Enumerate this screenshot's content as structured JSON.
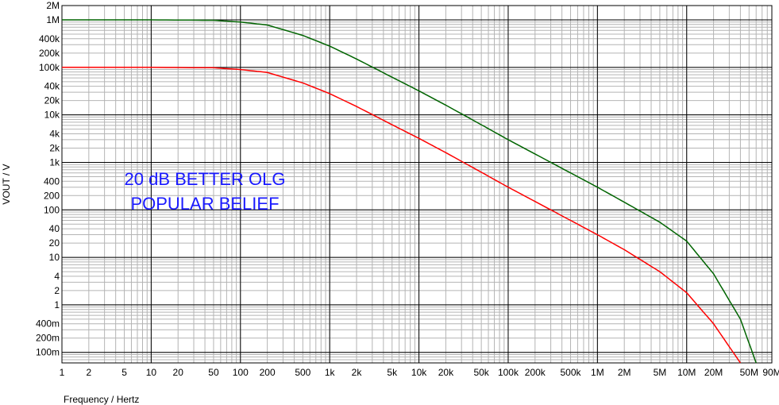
{
  "chart_data": {
    "type": "line",
    "xlabel": "Frequency / Hertz",
    "ylabel": "VOUT / V",
    "x_scale": "log",
    "y_scale": "log",
    "xlim": [
      1,
      90000000
    ],
    "ylim": [
      0.06,
      2000000
    ],
    "grid": true,
    "x_ticks": [
      {
        "value": 1,
        "label": "1"
      },
      {
        "value": 2,
        "label": "2"
      },
      {
        "value": 5,
        "label": "5"
      },
      {
        "value": 10,
        "label": "10"
      },
      {
        "value": 20,
        "label": "20"
      },
      {
        "value": 50,
        "label": "50"
      },
      {
        "value": 100,
        "label": "100"
      },
      {
        "value": 200,
        "label": "200"
      },
      {
        "value": 500,
        "label": "500"
      },
      {
        "value": 1000,
        "label": "1k"
      },
      {
        "value": 2000,
        "label": "2k"
      },
      {
        "value": 5000,
        "label": "5k"
      },
      {
        "value": 10000,
        "label": "10k"
      },
      {
        "value": 20000,
        "label": "20k"
      },
      {
        "value": 50000,
        "label": "50k"
      },
      {
        "value": 100000,
        "label": "100k"
      },
      {
        "value": 200000,
        "label": "200k"
      },
      {
        "value": 500000,
        "label": "500k"
      },
      {
        "value": 1000000,
        "label": "1M"
      },
      {
        "value": 2000000,
        "label": "2M"
      },
      {
        "value": 5000000,
        "label": "5M"
      },
      {
        "value": 10000000,
        "label": "10M"
      },
      {
        "value": 20000000,
        "label": "20M"
      },
      {
        "value": 50000000,
        "label": "50M"
      },
      {
        "value": 90000000,
        "label": "90M"
      }
    ],
    "y_ticks": [
      {
        "value": 2000000,
        "label": "2M"
      },
      {
        "value": 1000000,
        "label": "1M"
      },
      {
        "value": 400000,
        "label": "400k"
      },
      {
        "value": 200000,
        "label": "200k"
      },
      {
        "value": 100000,
        "label": "100k"
      },
      {
        "value": 40000,
        "label": "40k"
      },
      {
        "value": 20000,
        "label": "20k"
      },
      {
        "value": 10000,
        "label": "10k"
      },
      {
        "value": 4000,
        "label": "4k"
      },
      {
        "value": 2000,
        "label": "2k"
      },
      {
        "value": 1000,
        "label": "1k"
      },
      {
        "value": 400,
        "label": "400"
      },
      {
        "value": 200,
        "label": "200"
      },
      {
        "value": 100,
        "label": "100"
      },
      {
        "value": 40,
        "label": "40"
      },
      {
        "value": 20,
        "label": "20"
      },
      {
        "value": 10,
        "label": "10"
      },
      {
        "value": 4,
        "label": "4"
      },
      {
        "value": 2,
        "label": "2"
      },
      {
        "value": 1,
        "label": "1"
      },
      {
        "value": 0.4,
        "label": "400m"
      },
      {
        "value": 0.2,
        "label": "200m"
      },
      {
        "value": 0.1,
        "label": "100m"
      }
    ],
    "series": [
      {
        "color": "#006400",
        "x": [
          1,
          10,
          50,
          100,
          200,
          500,
          1000,
          2000,
          5000,
          10000,
          20000,
          50000,
          100000,
          200000,
          500000,
          1000000,
          2000000,
          5000000,
          10000000,
          20000000,
          40000000,
          60000000
        ],
        "y": [
          1000000,
          1000000,
          980000,
          900000,
          780000,
          470000,
          280000,
          150000,
          62000,
          32000,
          16000,
          6200,
          3000,
          1500,
          600,
          300,
          145,
          55,
          22,
          4.5,
          0.5,
          0.06
        ]
      },
      {
        "color": "#ff0000",
        "x": [
          1,
          10,
          50,
          100,
          200,
          500,
          1000,
          2000,
          5000,
          10000,
          20000,
          50000,
          100000,
          200000,
          500000,
          1000000,
          2000000,
          5000000,
          10000000,
          20000000,
          40000000
        ],
        "y": [
          100000,
          100000,
          98000,
          90000,
          78000,
          47000,
          28000,
          15000,
          6200,
          3200,
          1600,
          620,
          300,
          150,
          60,
          30,
          14.5,
          5,
          1.8,
          0.4,
          0.06
        ]
      }
    ],
    "annotations": [
      "20 dB BETTER OLG",
      "POPULAR BELIEF"
    ]
  }
}
